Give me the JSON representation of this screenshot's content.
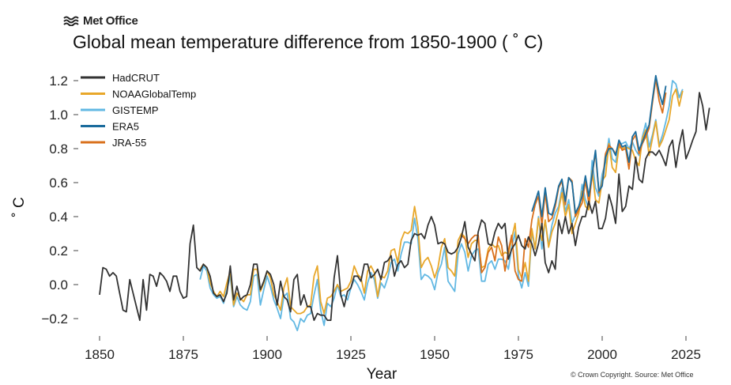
{
  "brand": {
    "name": "Met Office",
    "logo_icon": "met-office-waves-icon"
  },
  "copyright": "© Crown Copyright. Source: Met Office",
  "chart_data": {
    "type": "line",
    "title": "Global mean temperature difference from 1850-1900 ( ˚ C)",
    "xlabel": "Year",
    "ylabel": "˚ C",
    "xlim": [
      1845,
      2030
    ],
    "ylim": [
      -0.3,
      1.3
    ],
    "xticks": [
      1850,
      1875,
      1900,
      1925,
      1950,
      1975,
      2000,
      2025
    ],
    "yticks": [
      -0.2,
      0.0,
      0.2,
      0.4,
      0.6,
      0.8,
      1.0,
      1.2
    ],
    "ytick_labels": [
      "−0.2",
      "0.0",
      "0.2",
      "0.4",
      "0.6",
      "0.8",
      "1.0",
      "1.2"
    ],
    "grid": false,
    "legend_position": "top-left",
    "series": [
      {
        "name": "HadCRUT",
        "color": "#333333",
        "start_year": 1850,
        "values": [
          -0.06,
          0.1,
          0.09,
          0.05,
          0.07,
          0.05,
          -0.05,
          -0.15,
          -0.16,
          0.03,
          -0.05,
          -0.13,
          -0.21,
          0.03,
          -0.15,
          0.06,
          0.05,
          -0.01,
          0.07,
          0.05,
          0.02,
          -0.04,
          0.05,
          0.05,
          -0.04,
          -0.08,
          -0.07,
          0.24,
          0.35,
          0.1,
          0.08,
          0.12,
          0.1,
          0.05,
          -0.05,
          -0.07,
          -0.06,
          -0.1,
          -0.05,
          0.11,
          -0.09,
          -0.01,
          -0.09,
          -0.07,
          -0.06,
          0.0,
          0.12,
          0.12,
          -0.03,
          0.02,
          0.08,
          0.06,
          0.0,
          -0.12,
          0.02,
          -0.07,
          -0.09,
          -0.16,
          0.03,
          0.06,
          -0.12,
          -0.06,
          -0.13,
          -0.13,
          -0.21,
          -0.17,
          -0.18,
          -0.18,
          -0.21,
          -0.21,
          0.04,
          0.17,
          -0.06,
          -0.13,
          -0.04,
          -0.02,
          0.05,
          0.05,
          0.02,
          0.12,
          0.12,
          0.04,
          0.06,
          0.09,
          0.03,
          0.13,
          0.14,
          0.17,
          0.05,
          0.12,
          0.14,
          0.1,
          0.12,
          0.26,
          0.3,
          0.29,
          0.3,
          0.27,
          0.35,
          0.4,
          0.35,
          0.24,
          0.25,
          0.24,
          0.19,
          0.18,
          0.19,
          0.22,
          0.28,
          0.37,
          0.22,
          0.18,
          0.14,
          0.31,
          0.38,
          0.36,
          0.24,
          0.23,
          0.31,
          0.36,
          0.33,
          0.36,
          0.15,
          0.21,
          0.24,
          0.29,
          0.23,
          0.21,
          0.28,
          0.24,
          0.17,
          0.24,
          0.36,
          0.13,
          0.07,
          0.14,
          0.09,
          0.38,
          0.3,
          0.4,
          0.3,
          0.36,
          0.23,
          0.34,
          0.4,
          0.4,
          0.49,
          0.42,
          0.49,
          0.33,
          0.33,
          0.39,
          0.53,
          0.46,
          0.36,
          0.65,
          0.43,
          0.46,
          0.58,
          0.56,
          0.75,
          0.62,
          0.6,
          0.74,
          0.78,
          0.78,
          0.76,
          0.79,
          0.75,
          0.7,
          0.81,
          0.85,
          0.69,
          0.82,
          0.91,
          0.74,
          0.79,
          0.85,
          0.9,
          1.13,
          1.05,
          0.91,
          1.04
        ]
      },
      {
        "name": "NOAAGlobalTemp",
        "color": "#e8a72a",
        "start_year": 1880,
        "values": [
          0.09,
          0.12,
          0.1,
          0.01,
          -0.04,
          -0.07,
          -0.04,
          -0.07,
          0.01,
          0.08,
          -0.12,
          -0.05,
          -0.08,
          -0.1,
          -0.06,
          -0.06,
          0.09,
          0.09,
          -0.04,
          0.01,
          0.08,
          0.04,
          -0.06,
          -0.1,
          -0.15,
          -0.02,
          0.04,
          -0.13,
          -0.15,
          -0.17,
          -0.17,
          -0.16,
          -0.13,
          -0.12,
          0.05,
          0.11,
          -0.1,
          -0.17,
          -0.08,
          -0.07,
          -0.04,
          0.0,
          -0.04,
          -0.03,
          -0.02,
          0.02,
          0.11,
          0.06,
          0.04,
          -0.05,
          0.08,
          0.11,
          0.07,
          -0.07,
          0.05,
          0.04,
          0.08,
          0.2,
          0.21,
          0.13,
          0.26,
          0.31,
          0.3,
          0.32,
          0.46,
          0.34,
          0.1,
          0.14,
          0.16,
          0.11,
          0.04,
          0.1,
          0.22,
          0.27,
          0.1,
          0.08,
          0.05,
          0.26,
          0.3,
          0.28,
          0.16,
          0.24,
          0.26,
          0.26,
          0.1,
          0.11,
          0.21,
          0.24,
          0.22,
          0.23,
          0.17,
          0.19,
          0.18,
          0.27,
          0.36,
          0.09,
          0.04,
          0.13,
          0.02,
          0.33,
          0.21,
          0.39,
          0.26,
          0.38,
          0.22,
          0.31,
          0.36,
          0.44,
          0.54,
          0.4,
          0.47,
          0.3,
          0.36,
          0.42,
          0.55,
          0.46,
          0.44,
          0.67,
          0.5,
          0.48,
          0.61,
          0.64,
          0.83,
          0.69,
          0.66,
          0.81,
          0.8,
          0.81,
          0.8,
          0.79,
          0.73,
          0.7,
          0.86,
          0.91,
          0.76,
          0.86,
          0.96,
          0.81,
          0.85,
          0.91,
          0.97,
          1.11,
          1.15,
          1.05,
          1.14
        ]
      },
      {
        "name": "GISTEMP",
        "color": "#62b8e3",
        "start_year": 1880,
        "values": [
          0.03,
          0.11,
          0.08,
          -0.02,
          -0.06,
          -0.08,
          -0.07,
          -0.11,
          -0.03,
          0.05,
          -0.13,
          -0.07,
          -0.12,
          -0.14,
          -0.15,
          -0.1,
          0.05,
          0.06,
          -0.12,
          -0.03,
          0.05,
          -0.01,
          -0.09,
          -0.14,
          -0.2,
          -0.07,
          -0.05,
          -0.2,
          -0.22,
          -0.27,
          -0.2,
          -0.22,
          -0.18,
          -0.17,
          -0.06,
          0.03,
          -0.15,
          -0.24,
          -0.11,
          -0.13,
          -0.08,
          0.0,
          -0.07,
          -0.06,
          -0.09,
          -0.02,
          0.03,
          0.0,
          -0.04,
          -0.09,
          0.01,
          0.07,
          0.03,
          -0.08,
          0.01,
          -0.02,
          0.04,
          0.13,
          0.15,
          0.08,
          0.18,
          0.25,
          0.25,
          0.24,
          0.39,
          0.27,
          0.03,
          0.06,
          0.05,
          0.03,
          -0.03,
          0.07,
          0.12,
          0.22,
          0.02,
          -0.01,
          -0.04,
          0.18,
          0.24,
          0.19,
          0.08,
          0.17,
          0.2,
          0.21,
          0.02,
          0.02,
          0.12,
          0.14,
          0.09,
          0.15,
          0.15,
          0.14,
          0.09,
          0.22,
          0.31,
          0.05,
          -0.02,
          0.07,
          -0.01,
          0.31,
          0.21,
          0.4,
          0.21,
          0.38,
          0.23,
          0.35,
          0.42,
          0.46,
          0.57,
          0.43,
          0.5,
          0.36,
          0.41,
          0.44,
          0.59,
          0.5,
          0.45,
          0.73,
          0.57,
          0.52,
          0.65,
          0.72,
          0.86,
          0.74,
          0.72,
          0.83,
          0.83,
          0.84,
          0.8,
          0.84,
          0.79,
          0.76,
          0.87,
          0.95,
          0.81,
          0.88,
          0.97,
          0.82,
          0.88,
          0.96,
          1.05,
          1.2,
          1.18,
          1.1,
          1.15
        ]
      },
      {
        "name": "ERA5",
        "color": "#1a6b9c",
        "start_year": 1979,
        "values": [
          0.43,
          0.49,
          0.55,
          0.4,
          0.57,
          0.42,
          0.41,
          0.48,
          0.58,
          0.62,
          0.49,
          0.63,
          0.6,
          0.42,
          0.46,
          0.52,
          0.64,
          0.52,
          0.65,
          0.79,
          0.55,
          0.58,
          0.75,
          0.8,
          0.8,
          0.76,
          0.85,
          0.81,
          0.82,
          0.72,
          0.87,
          0.9,
          0.79,
          0.84,
          0.89,
          0.94,
          1.09,
          1.23,
          1.13,
          1.06,
          1.17
        ]
      },
      {
        "name": "JRA-55",
        "color": "#d9701c",
        "start_year": 1958,
        "values": [
          0.29,
          0.27,
          0.24,
          0.27,
          0.29,
          0.29,
          0.07,
          0.1,
          0.19,
          0.22,
          0.14,
          0.28,
          0.23,
          0.08,
          0.2,
          0.29,
          0.08,
          0.03,
          0.02,
          0.27,
          0.22,
          0.38,
          0.47,
          0.52,
          0.35,
          0.54,
          0.37,
          0.39,
          0.46,
          0.57,
          0.61,
          0.47,
          0.63,
          0.61,
          0.4,
          0.44,
          0.48,
          0.61,
          0.48,
          0.64,
          0.78,
          0.54,
          0.59,
          0.77,
          0.82,
          0.8,
          0.77,
          0.83,
          0.79,
          0.8,
          0.68,
          0.85,
          0.88,
          0.77,
          0.83,
          0.87,
          0.92,
          1.07,
          1.21,
          1.08,
          1.01,
          1.13
        ]
      }
    ]
  }
}
